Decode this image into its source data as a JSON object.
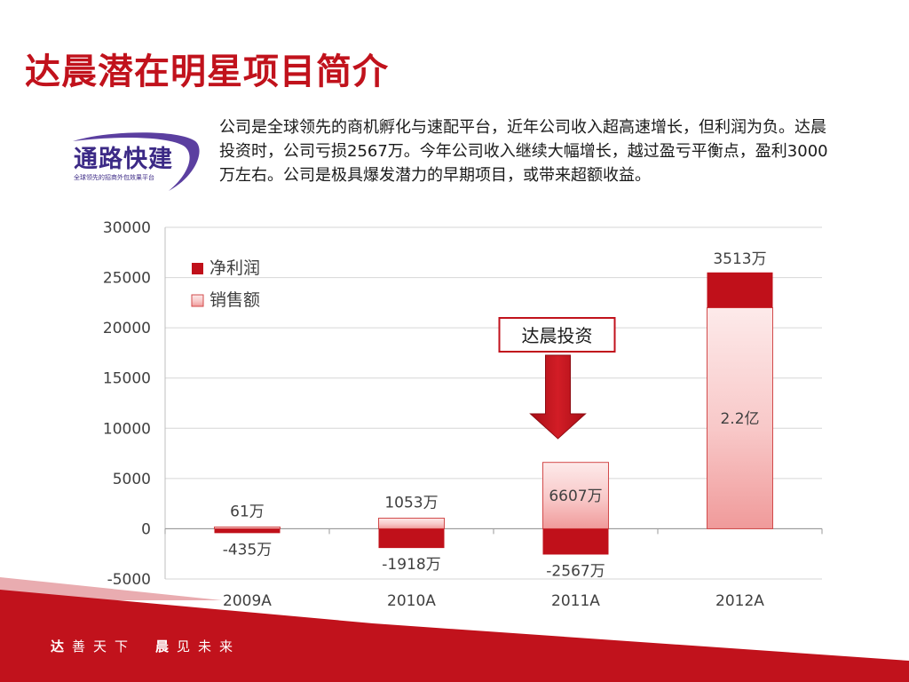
{
  "title": "达晨潜在明星项目简介",
  "logo": {
    "name": "通路快建",
    "tagline": "全球领先的招商外包效果平台"
  },
  "intro": "公司是全球领先的商机孵化与速配平台，近年公司收入超高速增长，但利润为负。达晨投资时，公司亏损2567万。今年公司收入继续大幅增长，越过盈亏平衡点，盈利3000万左右。公司是极具爆发潜力的早期项目，或带来超额收益。",
  "colors": {
    "brand_red": "#c1121c",
    "logo_purple": "#3c2a86",
    "net_profit": "#c0101a",
    "sales_light": "#fbdada"
  },
  "callout": "达晨投资",
  "footer": {
    "left_bold": "达",
    "left_rest": "善天下",
    "right_bold": "晨",
    "right_rest": "见未来"
  },
  "chart_data": {
    "type": "bar",
    "categories": [
      "2009A",
      "2010A",
      "2011A",
      "2012A"
    ],
    "series": [
      {
        "name": "净利润",
        "values": [
          -435,
          -1918,
          -2567,
          3513
        ],
        "labels": [
          "-435万",
          "-1918万",
          "-2567万",
          "3513万"
        ]
      },
      {
        "name": "销售额",
        "values": [
          61,
          1053,
          6607,
          22000
        ],
        "labels": [
          "61万",
          "1053万",
          "6607万",
          "2.2亿"
        ]
      }
    ],
    "ylim": [
      -5000,
      30000
    ],
    "yticks": [
      30000,
      25000,
      20000,
      15000,
      10000,
      5000,
      0,
      -5000
    ],
    "grid": true,
    "legend": "top-left",
    "annotation": {
      "text": "达晨投资",
      "category": "2011A"
    }
  }
}
